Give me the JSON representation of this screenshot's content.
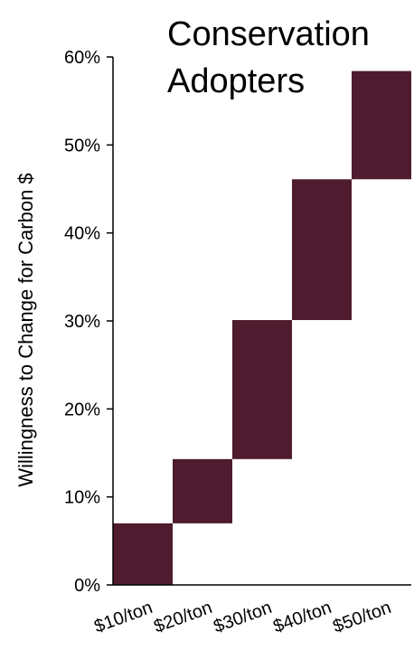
{
  "chart_data": {
    "type": "bar",
    "subtype": "waterfall-floating",
    "title_lines": [
      "Conservation",
      "Adopters"
    ],
    "ylabel": "Willingness to Change for Carbon $",
    "xlabel": "",
    "categories": [
      "$10/ton",
      "$20/ton",
      "$30/ton",
      "$40/ton",
      "$50/ton"
    ],
    "ranges": [
      [
        0,
        7
      ],
      [
        7,
        14.3
      ],
      [
        14.3,
        30.1
      ],
      [
        30.1,
        46.1
      ],
      [
        46.1,
        58.4
      ]
    ],
    "ylim": [
      0,
      60
    ],
    "yticks": [
      0,
      10,
      20,
      30,
      40,
      50,
      60
    ],
    "ytick_labels": [
      "0%",
      "10%",
      "20%",
      "30%",
      "40%",
      "50%",
      "60%"
    ],
    "bar_color": "#4e1c2e",
    "axis_color": "#000000",
    "grid": false,
    "legend": "none"
  }
}
